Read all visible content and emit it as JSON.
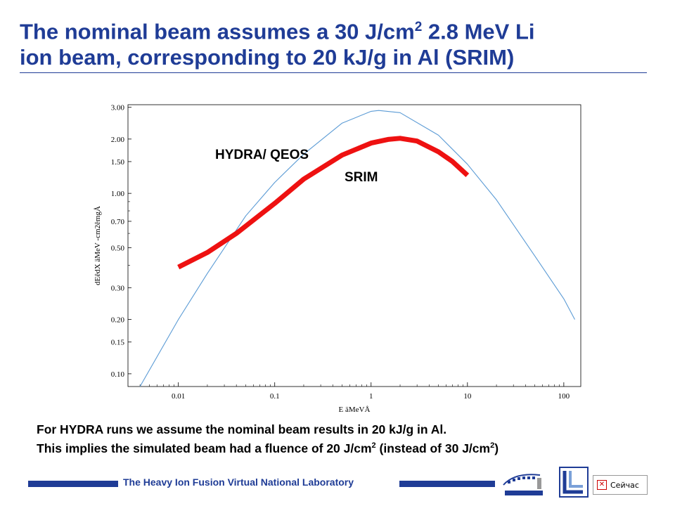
{
  "slide": {
    "title_line1_pre": "The nominal beam assumes a 30 J/cm",
    "title_line1_sup": "2",
    "title_line1_post": " 2.8 MeV Li",
    "title_line2": "ion beam, corresponding to 20 kJ/g in Al (SRIM)",
    "note_line1": "For HYDRA runs we assume the nominal beam results in 20 kJ/g in Al.",
    "note_line2_pre": "This implies the simulated beam had a fluence of 20 J/cm",
    "note_line2_sup1": "2",
    "note_line2_mid": " (instead of 30 J/cm",
    "note_line2_sup2": "2",
    "note_line2_post": ")",
    "footer_text": "The Heavy Ion Fusion Virtual National Laboratory",
    "popup_text": "Сейчас",
    "accent_color": "#1f3c96"
  },
  "chart_data": {
    "type": "line",
    "xscale": "log",
    "yscale": "log",
    "xlabel": "E äMeVÅ",
    "ylabel": "dEêdX äMeV -cm2êmgÅ",
    "xlim": [
      0.003,
      150
    ],
    "ylim": [
      0.085,
      3.1
    ],
    "x_ticks": [
      "0.01",
      "0.1",
      "1",
      "10",
      "100"
    ],
    "x_tick_values": [
      0.01,
      0.1,
      1,
      10,
      100
    ],
    "y_ticks": [
      "0.10",
      "0.15",
      "0.20",
      "0.30",
      "0.50",
      "0.70",
      "1.00",
      "1.50",
      "2.00",
      "3.00"
    ],
    "y_tick_values": [
      0.1,
      0.15,
      0.2,
      0.3,
      0.5,
      0.7,
      1.0,
      1.5,
      2.0,
      3.0
    ],
    "series": [
      {
        "name": "HYDRA/ QEOS",
        "color": "#5b9bd5",
        "x": [
          0.004,
          0.01,
          0.02,
          0.05,
          0.1,
          0.2,
          0.5,
          1.0,
          1.2,
          2.0,
          5.0,
          10,
          20,
          50,
          100,
          130
        ],
        "y": [
          0.085,
          0.2,
          0.36,
          0.75,
          1.15,
          1.65,
          2.45,
          2.85,
          2.88,
          2.8,
          2.1,
          1.45,
          0.92,
          0.45,
          0.26,
          0.2
        ]
      },
      {
        "name": "SRIM",
        "color": "#ee1111",
        "x": [
          0.01,
          0.02,
          0.04,
          0.1,
          0.2,
          0.5,
          1.0,
          1.5,
          2.0,
          3.0,
          5.0,
          7.0,
          10
        ],
        "y": [
          0.39,
          0.47,
          0.6,
          0.88,
          1.2,
          1.63,
          1.9,
          1.99,
          2.02,
          1.95,
          1.7,
          1.5,
          1.26
        ]
      }
    ]
  }
}
